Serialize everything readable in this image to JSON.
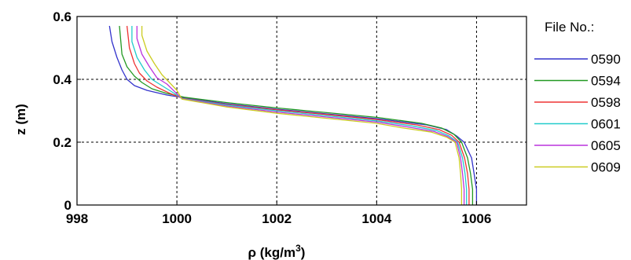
{
  "chart_data": {
    "type": "line",
    "xlabel": "ρ (kg/m",
    "xlabel_sup": "3",
    "xlabel_close": ")",
    "ylabel": "z (m)",
    "xlim": [
      998,
      1007
    ],
    "ylim": [
      0,
      0.6
    ],
    "xticks": [
      "998",
      "1000",
      "1002",
      "1004",
      "1006"
    ],
    "xtick_values": [
      998,
      1000,
      1002,
      1004,
      1006
    ],
    "yticks": [
      "0",
      "0.2",
      "0.4",
      "0.6"
    ],
    "ytick_values": [
      0,
      0.2,
      0.4,
      0.6
    ],
    "grid": true,
    "legend_title": "File No.:",
    "legend_position": "outside-right",
    "series": [
      {
        "name": "0590",
        "color": "#3333cc",
        "points": [
          [
            1006.0,
            0.0
          ],
          [
            1006.0,
            0.05
          ],
          [
            1005.95,
            0.1
          ],
          [
            1005.9,
            0.15
          ],
          [
            1005.75,
            0.2
          ],
          [
            1005.6,
            0.22
          ],
          [
            1005.4,
            0.24
          ],
          [
            1005.0,
            0.255
          ],
          [
            1004.0,
            0.275
          ],
          [
            1003.0,
            0.29
          ],
          [
            1002.0,
            0.305
          ],
          [
            1001.0,
            0.322
          ],
          [
            1000.2,
            0.34
          ],
          [
            999.8,
            0.35
          ],
          [
            999.4,
            0.365
          ],
          [
            999.15,
            0.38
          ],
          [
            999.0,
            0.4
          ],
          [
            998.9,
            0.43
          ],
          [
            998.8,
            0.47
          ],
          [
            998.7,
            0.52
          ],
          [
            998.65,
            0.57
          ]
        ]
      },
      {
        "name": "0594",
        "color": "#229922",
        "points": [
          [
            1005.92,
            0.0
          ],
          [
            1005.92,
            0.05
          ],
          [
            1005.88,
            0.1
          ],
          [
            1005.82,
            0.15
          ],
          [
            1005.7,
            0.2
          ],
          [
            1005.55,
            0.225
          ],
          [
            1005.3,
            0.245
          ],
          [
            1004.9,
            0.26
          ],
          [
            1004.0,
            0.279
          ],
          [
            1003.0,
            0.294
          ],
          [
            1002.0,
            0.309
          ],
          [
            1001.0,
            0.326
          ],
          [
            1000.15,
            0.343
          ],
          [
            999.8,
            0.355
          ],
          [
            999.5,
            0.37
          ],
          [
            999.3,
            0.39
          ],
          [
            999.15,
            0.41
          ],
          [
            999.0,
            0.44
          ],
          [
            998.9,
            0.48
          ],
          [
            998.85,
            0.57
          ]
        ]
      },
      {
        "name": "0598",
        "color": "#ee3333",
        "points": [
          [
            1005.85,
            0.0
          ],
          [
            1005.85,
            0.05
          ],
          [
            1005.82,
            0.1
          ],
          [
            1005.76,
            0.15
          ],
          [
            1005.65,
            0.2
          ],
          [
            1005.5,
            0.222
          ],
          [
            1005.25,
            0.24
          ],
          [
            1004.8,
            0.255
          ],
          [
            1004.0,
            0.272
          ],
          [
            1003.0,
            0.288
          ],
          [
            1002.0,
            0.303
          ],
          [
            1001.0,
            0.32
          ],
          [
            1000.1,
            0.34
          ],
          [
            999.85,
            0.356
          ],
          [
            999.6,
            0.375
          ],
          [
            999.4,
            0.395
          ],
          [
            999.25,
            0.42
          ],
          [
            999.15,
            0.45
          ],
          [
            999.05,
            0.5
          ],
          [
            999.0,
            0.57
          ]
        ]
      },
      {
        "name": "0601",
        "color": "#22cccc",
        "points": [
          [
            1005.8,
            0.0
          ],
          [
            1005.8,
            0.05
          ],
          [
            1005.77,
            0.1
          ],
          [
            1005.72,
            0.15
          ],
          [
            1005.62,
            0.2
          ],
          [
            1005.45,
            0.22
          ],
          [
            1005.2,
            0.237
          ],
          [
            1004.7,
            0.252
          ],
          [
            1004.0,
            0.268
          ],
          [
            1003.0,
            0.284
          ],
          [
            1002.0,
            0.3
          ],
          [
            1001.0,
            0.318
          ],
          [
            1000.1,
            0.339
          ],
          [
            999.9,
            0.36
          ],
          [
            999.7,
            0.38
          ],
          [
            999.5,
            0.4
          ],
          [
            999.35,
            0.43
          ],
          [
            999.2,
            0.47
          ],
          [
            999.1,
            0.52
          ],
          [
            999.1,
            0.57
          ]
        ]
      },
      {
        "name": "0605",
        "color": "#bb33dd",
        "points": [
          [
            1005.75,
            0.0
          ],
          [
            1005.75,
            0.05
          ],
          [
            1005.72,
            0.1
          ],
          [
            1005.68,
            0.15
          ],
          [
            1005.6,
            0.2
          ],
          [
            1005.42,
            0.218
          ],
          [
            1005.15,
            0.234
          ],
          [
            1004.6,
            0.249
          ],
          [
            1004.0,
            0.264
          ],
          [
            1003.0,
            0.28
          ],
          [
            1002.0,
            0.296
          ],
          [
            1001.0,
            0.315
          ],
          [
            1000.1,
            0.338
          ],
          [
            999.95,
            0.362
          ],
          [
            999.8,
            0.385
          ],
          [
            999.6,
            0.405
          ],
          [
            999.45,
            0.44
          ],
          [
            999.3,
            0.48
          ],
          [
            999.2,
            0.53
          ],
          [
            999.2,
            0.57
          ]
        ]
      },
      {
        "name": "0609",
        "color": "#cccc22",
        "points": [
          [
            1005.7,
            0.0
          ],
          [
            1005.7,
            0.05
          ],
          [
            1005.68,
            0.1
          ],
          [
            1005.65,
            0.15
          ],
          [
            1005.57,
            0.2
          ],
          [
            1005.4,
            0.216
          ],
          [
            1005.1,
            0.232
          ],
          [
            1004.5,
            0.246
          ],
          [
            1004.0,
            0.26
          ],
          [
            1003.0,
            0.276
          ],
          [
            1002.0,
            0.292
          ],
          [
            1001.0,
            0.312
          ],
          [
            1000.1,
            0.337
          ],
          [
            1000.0,
            0.365
          ],
          [
            999.85,
            0.39
          ],
          [
            999.7,
            0.415
          ],
          [
            999.55,
            0.45
          ],
          [
            999.4,
            0.49
          ],
          [
            999.3,
            0.54
          ],
          [
            999.3,
            0.57
          ]
        ]
      }
    ]
  }
}
